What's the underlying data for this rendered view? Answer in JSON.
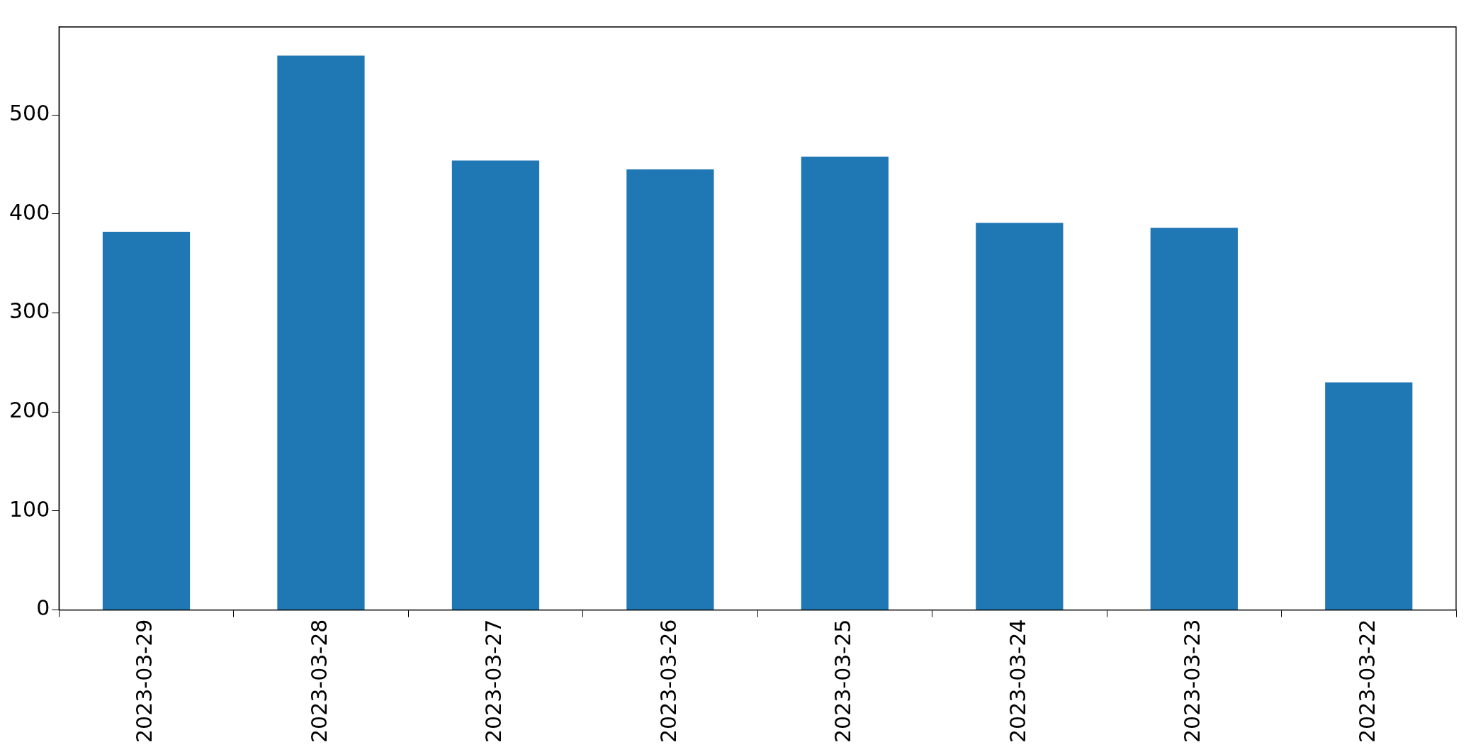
{
  "chart_data": {
    "type": "bar",
    "categories": [
      "2023-03-29",
      "2023-03-28",
      "2023-03-27",
      "2023-03-26",
      "2023-03-25",
      "2023-03-24",
      "2023-03-23",
      "2023-03-22"
    ],
    "values": [
      382,
      560,
      454,
      445,
      458,
      391,
      386,
      230
    ],
    "color": "#1f77b4",
    "ylim": [
      0,
      589
    ],
    "yticks": [
      0,
      100,
      200,
      300,
      400,
      500
    ],
    "grid": false,
    "legend": false
  }
}
